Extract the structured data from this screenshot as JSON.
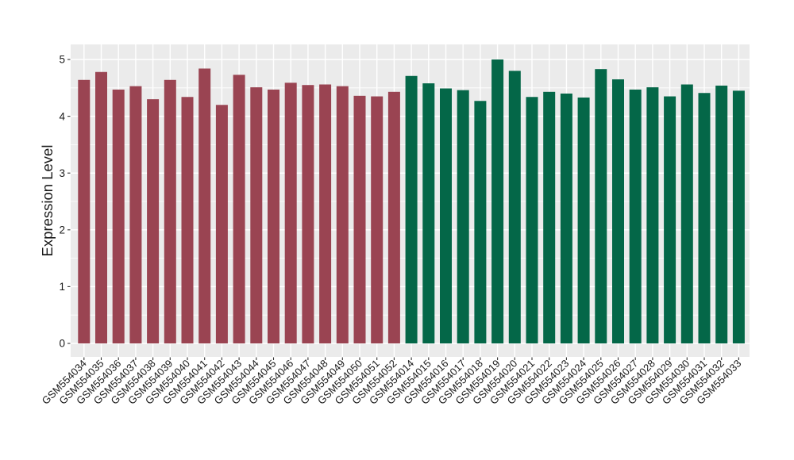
{
  "colors": {
    "background": "#FFFFFF",
    "panel": "#EBEBEB",
    "gridline": "#FFFFFF",
    "tick": "#333333",
    "axis_text": "#1A1A1A",
    "group_red": "#9A4452",
    "group_green": "#046748"
  },
  "chart_data": {
    "type": "bar",
    "title": "",
    "xlabel": "",
    "ylabel": "Expression Level",
    "ylim": [
      0,
      5.26
    ],
    "yticks": [
      0,
      1,
      2,
      3,
      4,
      5
    ],
    "grid": "white major and minor horizontal lines plus vertical category lines on gray panel",
    "legend_position": "none",
    "groups": [
      {
        "name": "GSM554034-GSM554052",
        "color": "#9A4452",
        "count": 19
      },
      {
        "name": "GSM554014-GSM554033",
        "color": "#046748",
        "count": 20
      }
    ],
    "categories": [
      "GSM554034",
      "GSM554035",
      "GSM554036",
      "GSM554037",
      "GSM554038",
      "GSM554039",
      "GSM554040",
      "GSM554041",
      "GSM554042",
      "GSM554043",
      "GSM554044",
      "GSM554045",
      "GSM554046",
      "GSM554047",
      "GSM554048",
      "GSM554049",
      "GSM554050",
      "GSM554051",
      "GSM554052",
      "GSM554014",
      "GSM554015",
      "GSM554016",
      "GSM554017",
      "GSM554018",
      "GSM554019",
      "GSM554020",
      "GSM554021",
      "GSM554022",
      "GSM554023",
      "GSM554024",
      "GSM554025",
      "GSM554026",
      "GSM554027",
      "GSM554028",
      "GSM554029",
      "GSM554030",
      "GSM554031",
      "GSM554032",
      "GSM554033"
    ],
    "values": [
      4.64,
      4.78,
      4.47,
      4.53,
      4.3,
      4.64,
      4.34,
      4.84,
      4.2,
      4.73,
      4.51,
      4.47,
      4.59,
      4.55,
      4.56,
      4.53,
      4.36,
      4.35,
      4.43,
      4.71,
      4.58,
      4.49,
      4.46,
      4.27,
      5.0,
      4.8,
      4.34,
      4.43,
      4.4,
      4.33,
      4.83,
      4.65,
      4.47,
      4.51,
      4.35,
      4.56,
      4.41,
      4.54,
      4.45
    ]
  }
}
